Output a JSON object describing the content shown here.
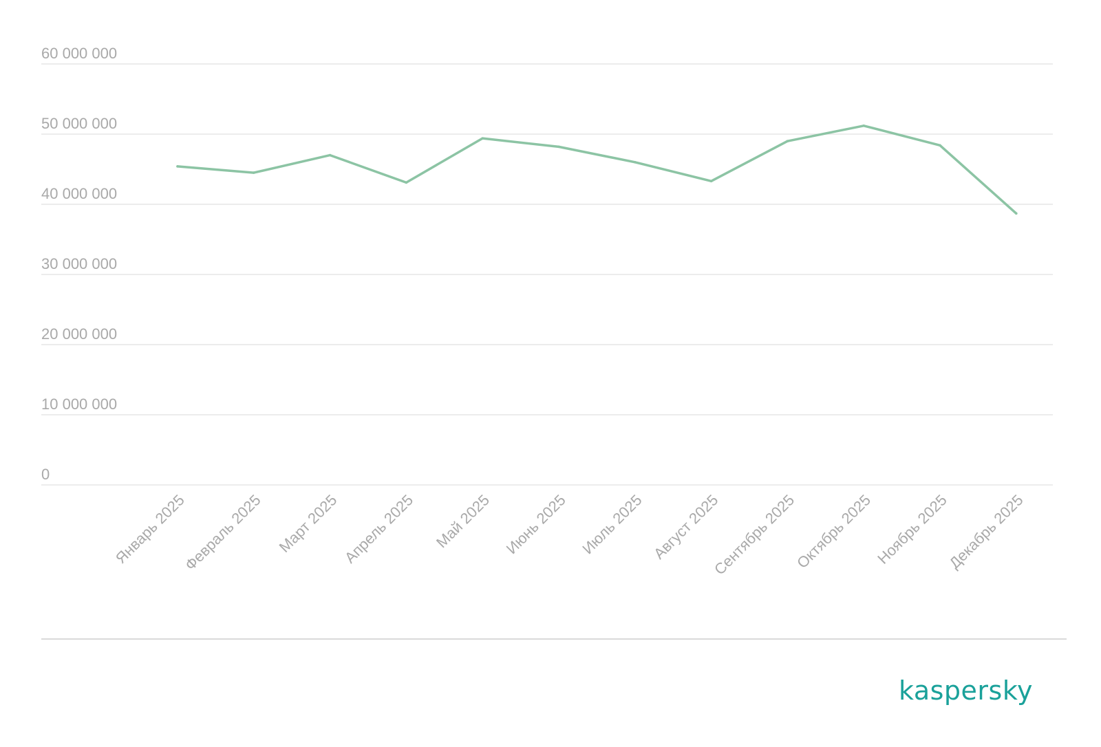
{
  "chart_data": {
    "type": "line",
    "categories": [
      "Январь 2025",
      "Февраль 2025",
      "Март 2025",
      "Апрель 2025",
      "Май 2025",
      "Июнь 2025",
      "Июль 2025",
      "Август 2025",
      "Сентябрь 2025",
      "Октябрь 2025",
      "Ноябрь 2025",
      "Декабрь 2025"
    ],
    "series": [
      {
        "values": [
          45400000,
          44500000,
          47000000,
          43100000,
          49400000,
          48200000,
          46000000,
          43300000,
          49000000,
          51200000,
          48400000,
          38700000
        ],
        "color": "#8cc4a4"
      }
    ],
    "yticks": [
      0,
      10000000,
      20000000,
      30000000,
      40000000,
      50000000,
      60000000
    ],
    "ytick_labels": [
      "0",
      "10 000 000",
      "20 000 000",
      "30 000 000",
      "40 000 000",
      "50 000 000",
      "60 000 000"
    ],
    "ylim": [
      0,
      60000000
    ],
    "grid": true,
    "legend": "none",
    "title": "",
    "xlabel": "",
    "ylabel": ""
  },
  "brand": {
    "logo_text": "kaspersky",
    "logo_color": "#1aa19a"
  },
  "colors": {
    "tick_text": "#a9a9a9",
    "grid": "#e6e6e6",
    "line": "#8cc4a4"
  }
}
